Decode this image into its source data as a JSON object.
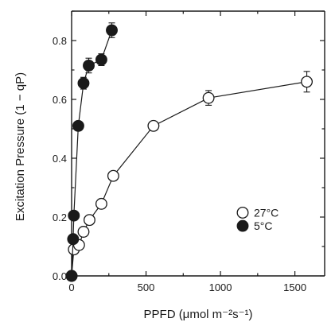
{
  "chart_data": {
    "type": "scatter",
    "title": "",
    "xlabel": "PPFD (μmol m⁻²s⁻¹)",
    "ylabel": "Excitation Pressure (1 − qP)",
    "xlim": [
      0,
      1700
    ],
    "ylim": [
      0,
      0.9
    ],
    "x_ticks": [
      0,
      500,
      1000,
      1500
    ],
    "x_tick_labels": [
      "0",
      "500",
      "1000",
      "1500"
    ],
    "y_ticks": [
      0.0,
      0.2,
      0.4,
      0.6,
      0.8
    ],
    "y_tick_labels": [
      "0.0",
      "0.2",
      "0.4",
      "0.6",
      "0.8"
    ],
    "grid": false,
    "legend_position": "center-right",
    "series": [
      {
        "name": "27°C",
        "marker": "open-circle",
        "color": "#1a1a1a",
        "x": [
          0,
          15,
          50,
          80,
          120,
          200,
          280,
          550,
          920,
          1580
        ],
        "y": [
          0.0,
          0.09,
          0.105,
          0.15,
          0.19,
          0.245,
          0.34,
          0.51,
          0.605,
          0.66
        ],
        "err": [
          0,
          0.01,
          0.01,
          0.01,
          0.012,
          0.015,
          0.01,
          0.012,
          0.025,
          0.035
        ]
      },
      {
        "name": "5°C",
        "marker": "filled-circle",
        "color": "#1a1a1a",
        "x": [
          0,
          10,
          15,
          45,
          80,
          115,
          200,
          270
        ],
        "y": [
          0.0,
          0.125,
          0.205,
          0.51,
          0.655,
          0.715,
          0.735,
          0.835
        ],
        "err": [
          0,
          0.01,
          0.01,
          0.015,
          0.02,
          0.025,
          0.02,
          0.025
        ]
      }
    ]
  }
}
